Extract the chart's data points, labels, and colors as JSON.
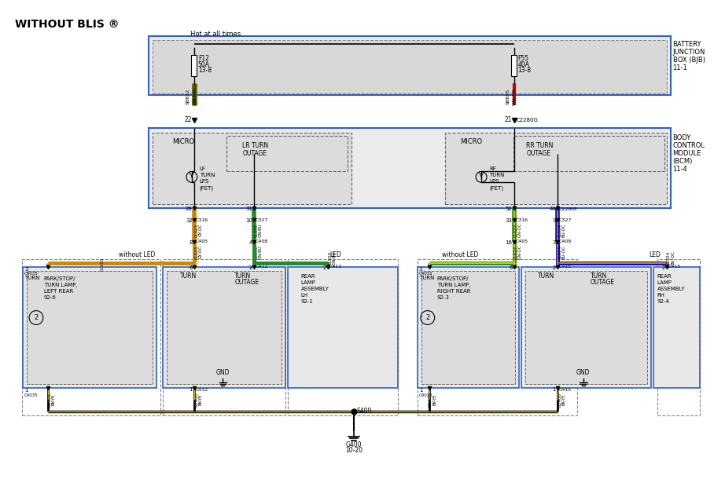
{
  "bg": "#ffffff",
  "bk": "#000000",
  "rd": "#CC0000",
  "gn": "#228B22",
  "oy": "#CC8800",
  "bl": "#0000CC",
  "ye": "#CCCC00",
  "title": "WITHOUT BLIS ®",
  "hot_label": "Hot at all times",
  "bjb_label": [
    "BATTERY",
    "JUNCTION",
    "BOX (BJB)",
    "11-1"
  ],
  "bcm_label": [
    "BODY",
    "CONTROL",
    "MODULE",
    "(BCM)",
    "11-4"
  ]
}
